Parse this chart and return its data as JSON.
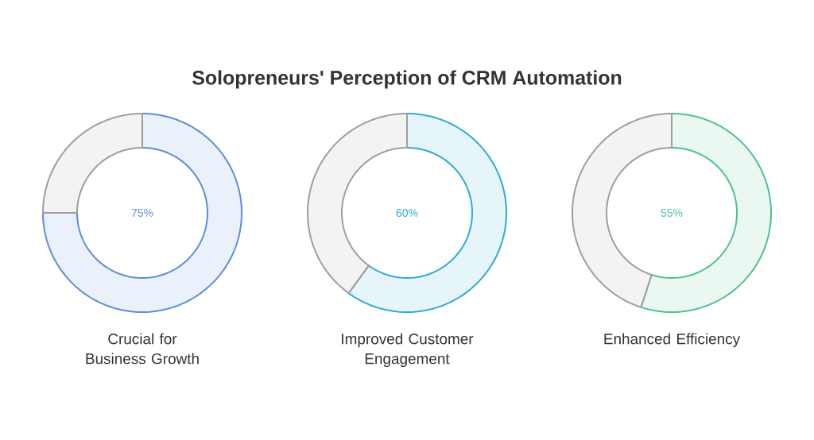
{
  "chart_data": [
    {
      "type": "donut",
      "title": "Solopreneurs' Perception of CRM Automation",
      "xlabel": "Crucial for Business Growth",
      "categories": [
        null,
        null
      ],
      "values": [
        75,
        25
      ],
      "colors": [
        "#5b8dd9",
        "#9e9e9e"
      ],
      "value_labels": [
        "75%",
        null
      ]
    },
    {
      "type": "donut",
      "xlabel": "Improved Customer Engagement",
      "categories": [
        null,
        null
      ],
      "values": [
        60,
        40
      ],
      "colors": [
        "#2eaad6",
        "#9e9e9e"
      ],
      "value_labels": [
        "60%",
        null
      ]
    },
    {
      "type": "donut",
      "xlabel": "Enhanced Efficiency",
      "categories": [
        null,
        null
      ],
      "values": [
        55,
        45
      ],
      "colors": [
        "#4cc38a",
        "#9e9e9e"
      ],
      "value_labels": [
        "55%",
        null
      ]
    }
  ]
}
